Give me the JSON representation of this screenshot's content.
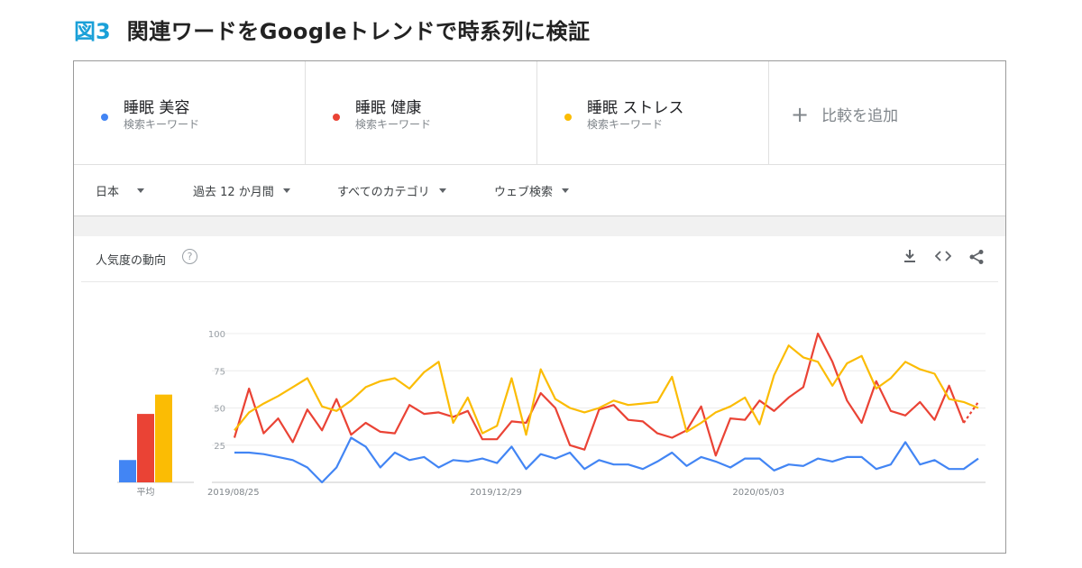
{
  "figure": {
    "number": "図3",
    "title": "関連ワードをGoogleトレンドで時系列に検証"
  },
  "terms": [
    {
      "name": "睡眠 美容",
      "type": "検索キーワード",
      "color": "#4285f4"
    },
    {
      "name": "睡眠 健康",
      "type": "検索キーワード",
      "color": "#ea4335"
    },
    {
      "name": "睡眠 ストレス",
      "type": "検索キーワード",
      "color": "#fbbc04"
    }
  ],
  "add_compare": {
    "icon": "plus-icon",
    "label": "比較を追加"
  },
  "filters": [
    {
      "label": "日本"
    },
    {
      "label": "過去 12 か月間"
    },
    {
      "label": "すべてのカテゴリ"
    },
    {
      "label": "ウェブ検索"
    }
  ],
  "card": {
    "title": "人気度の動向",
    "help_glyph": "?",
    "icons": [
      "download-icon",
      "embed-icon",
      "share-icon"
    ]
  },
  "chart_data": {
    "type": "line",
    "ylim": [
      0,
      100
    ],
    "yticks": [
      "100",
      "75",
      "50",
      "25"
    ],
    "xtick_labels": [
      {
        "label": "2019/08/25",
        "index": 0
      },
      {
        "label": "2019/12/29",
        "index": 18
      },
      {
        "label": "2020/05/03",
        "index": 36
      }
    ],
    "average": {
      "label": "平均",
      "values": [
        {
          "name": "睡眠 美容",
          "value": 15,
          "color": "#4285f4"
        },
        {
          "name": "睡眠 健康",
          "value": 46,
          "color": "#ea4335"
        },
        {
          "name": "睡眠 ストレス",
          "value": 59,
          "color": "#fbbc04"
        }
      ]
    },
    "series": [
      {
        "name": "睡眠 美容",
        "color": "#4285f4",
        "partial_last": false,
        "values": [
          20,
          20,
          19,
          17,
          15,
          10,
          0,
          10,
          30,
          24,
          10,
          20,
          15,
          17,
          10,
          15,
          14,
          16,
          13,
          24,
          9,
          19,
          16,
          20,
          9,
          15,
          12,
          12,
          9,
          14,
          20,
          11,
          17,
          14,
          10,
          16,
          16,
          8,
          12,
          11,
          16,
          14,
          17,
          17,
          9,
          12,
          27,
          12,
          15,
          9,
          9,
          16
        ]
      },
      {
        "name": "睡眠 健康",
        "color": "#ea4335",
        "partial_last": true,
        "values": [
          30,
          63,
          33,
          43,
          27,
          49,
          35,
          56,
          32,
          40,
          34,
          33,
          52,
          46,
          47,
          44,
          48,
          29,
          29,
          41,
          40,
          60,
          50,
          25,
          22,
          49,
          52,
          42,
          41,
          33,
          30,
          35,
          51,
          18,
          43,
          42,
          55,
          48,
          57,
          64,
          100,
          81,
          55,
          40,
          68,
          48,
          45,
          54,
          42,
          65,
          40,
          54
        ]
      },
      {
        "name": "睡眠 ストレス",
        "color": "#fbbc04",
        "partial_last": false,
        "values": [
          35,
          47,
          53,
          58,
          64,
          70,
          51,
          48,
          55,
          64,
          68,
          70,
          63,
          74,
          81,
          40,
          57,
          33,
          38,
          70,
          32,
          76,
          56,
          50,
          47,
          50,
          55,
          52,
          53,
          54,
          71,
          34,
          40,
          47,
          51,
          57,
          39,
          72,
          92,
          84,
          81,
          65,
          80,
          85,
          63,
          70,
          81,
          76,
          73,
          56,
          54,
          50
        ]
      }
    ]
  }
}
